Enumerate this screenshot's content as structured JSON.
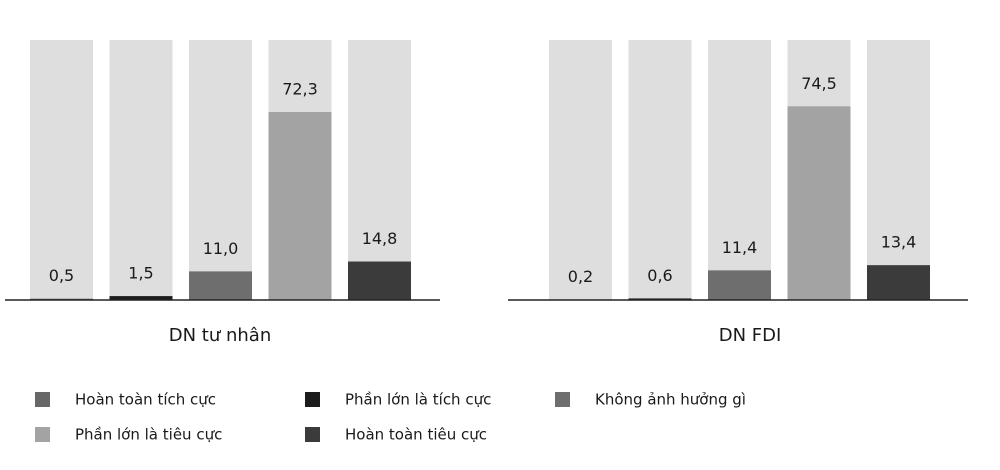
{
  "legend": [
    {
      "label": "Hoàn toàn tích cực",
      "color": "#676767"
    },
    {
      "label": "Phần lớn là tích cực",
      "color": "#1c1c1c"
    },
    {
      "label": "Không ảnh hưởng gì",
      "color": "#6e6e6e"
    },
    {
      "label": "Phần lớn là tiêu cực",
      "color": "#a3a3a3"
    },
    {
      "label": "Hoàn toàn tiêu cực",
      "color": "#3b3b3b"
    }
  ],
  "chart_data": [
    {
      "type": "bar",
      "title": "DN tư nhân",
      "ylim": [
        0,
        100
      ],
      "values": [
        0.5,
        1.5,
        11.0,
        72.3,
        14.8
      ],
      "value_labels": [
        "0,5",
        "1,5",
        "11,0",
        "72,3",
        "14,8"
      ]
    },
    {
      "type": "bar",
      "title": "DN FDI",
      "ylim": [
        0,
        100
      ],
      "values": [
        0.2,
        0.6,
        11.4,
        74.5,
        13.4
      ],
      "value_labels": [
        "0,2",
        "0,6",
        "11,4",
        "74,5",
        "13,4"
      ]
    }
  ]
}
